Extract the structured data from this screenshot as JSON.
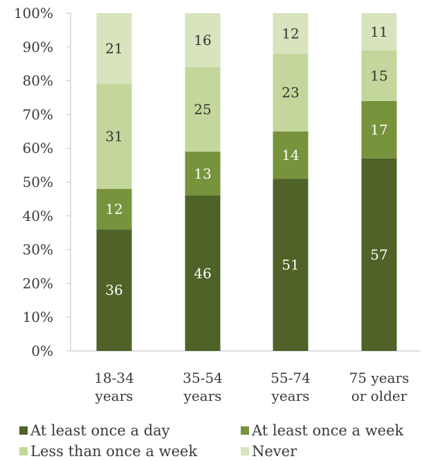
{
  "chart_data": {
    "type": "bar",
    "stacked": true,
    "categories": [
      [
        "18-34",
        "years"
      ],
      [
        "35-54",
        "years"
      ],
      [
        "55-74",
        "years"
      ],
      [
        "75 years",
        "or older"
      ]
    ],
    "series": [
      {
        "name": "At least once a day",
        "values": [
          36,
          46,
          51,
          57
        ],
        "color": "#4f6228",
        "label_color": "#ffffff"
      },
      {
        "name": "At least once a week",
        "values": [
          12,
          13,
          14,
          17
        ],
        "color": "#77933c",
        "label_color": "#ffffff"
      },
      {
        "name": "Less than once a week",
        "values": [
          31,
          25,
          23,
          15
        ],
        "color": "#c3d69b",
        "label_color": "#333333"
      },
      {
        "name": "Never",
        "values": [
          21,
          16,
          12,
          11
        ],
        "color": "#d7e4bd",
        "label_color": "#333333"
      }
    ],
    "y_ticks": [
      "0%",
      "10%",
      "20%",
      "30%",
      "40%",
      "50%",
      "60%",
      "70%",
      "80%",
      "90%",
      "100%"
    ],
    "ylim": [
      0,
      100
    ],
    "grid": false,
    "legend_position": "bottom"
  }
}
